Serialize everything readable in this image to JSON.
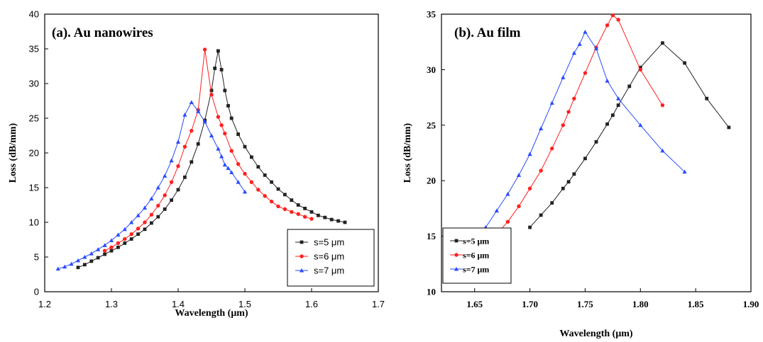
{
  "chart_data": [
    {
      "id": "a",
      "type": "line",
      "title": "(a). Au nanowires",
      "xlabel": "Wavelength (μm)",
      "ylabel": "Loss (dB/mm)",
      "xlim": [
        1.2,
        1.7
      ],
      "ylim": [
        0,
        40
      ],
      "xticks": [
        "1.2",
        "1.3",
        "1.4",
        "1.5",
        "1.6",
        "1.7"
      ],
      "yticks": [
        "0",
        "5",
        "10",
        "15",
        "20",
        "25",
        "30",
        "35",
        "40"
      ],
      "legend_position": "bottom-right",
      "series": [
        {
          "name": "s=5 μm",
          "color": "#222222",
          "marker": "square",
          "x": [
            1.25,
            1.26,
            1.27,
            1.28,
            1.29,
            1.3,
            1.31,
            1.32,
            1.33,
            1.34,
            1.35,
            1.36,
            1.37,
            1.38,
            1.39,
            1.4,
            1.41,
            1.42,
            1.43,
            1.44,
            1.45,
            1.455,
            1.46,
            1.465,
            1.47,
            1.475,
            1.48,
            1.49,
            1.5,
            1.51,
            1.52,
            1.53,
            1.54,
            1.55,
            1.56,
            1.57,
            1.58,
            1.59,
            1.6,
            1.61,
            1.62,
            1.63,
            1.64,
            1.65
          ],
          "y": [
            3.5,
            3.9,
            4.4,
            4.9,
            5.4,
            5.9,
            6.4,
            7.0,
            7.6,
            8.3,
            9.0,
            9.9,
            10.8,
            11.9,
            13.2,
            14.7,
            16.5,
            18.7,
            21.3,
            24.7,
            29.0,
            32.2,
            34.7,
            32.0,
            29.0,
            26.8,
            25.0,
            22.7,
            20.9,
            19.4,
            18.0,
            16.8,
            15.8,
            14.8,
            14.0,
            13.2,
            12.5,
            12.0,
            11.5,
            11.0,
            10.7,
            10.4,
            10.2,
            10.0
          ]
        },
        {
          "name": "s=6 μm",
          "color": "#ff2020",
          "marker": "circle",
          "x": [
            1.29,
            1.3,
            1.31,
            1.32,
            1.33,
            1.34,
            1.35,
            1.36,
            1.37,
            1.38,
            1.39,
            1.4,
            1.41,
            1.42,
            1.43,
            1.44,
            1.45,
            1.46,
            1.465,
            1.47,
            1.48,
            1.49,
            1.5,
            1.51,
            1.52,
            1.53,
            1.54,
            1.55,
            1.56,
            1.57,
            1.58,
            1.59,
            1.6
          ],
          "y": [
            5.9,
            6.4,
            7.0,
            7.6,
            8.3,
            9.1,
            10.0,
            11.1,
            12.4,
            13.9,
            15.8,
            18.1,
            20.9,
            23.2,
            26.2,
            34.9,
            28.4,
            25.2,
            24.0,
            22.8,
            20.3,
            18.4,
            17.0,
            15.8,
            14.7,
            13.8,
            13.0,
            12.3,
            11.9,
            11.5,
            11.2,
            10.8,
            10.5
          ]
        },
        {
          "name": "s=7 μm",
          "color": "#2a4bff",
          "marker": "triangle",
          "x": [
            1.22,
            1.23,
            1.24,
            1.25,
            1.26,
            1.27,
            1.28,
            1.29,
            1.3,
            1.31,
            1.32,
            1.33,
            1.34,
            1.35,
            1.36,
            1.37,
            1.38,
            1.39,
            1.4,
            1.41,
            1.42,
            1.43,
            1.44,
            1.45,
            1.46,
            1.465,
            1.47,
            1.475,
            1.48,
            1.49,
            1.5
          ],
          "y": [
            3.3,
            3.6,
            4.0,
            4.5,
            5.0,
            5.5,
            6.1,
            6.7,
            7.4,
            8.2,
            9.0,
            10.0,
            11.0,
            12.1,
            13.4,
            15.0,
            16.7,
            18.9,
            21.6,
            25.5,
            27.3,
            26.0,
            24.5,
            22.5,
            20.6,
            19.5,
            18.3,
            17.8,
            17.2,
            15.8,
            14.4
          ]
        }
      ]
    },
    {
      "id": "b",
      "type": "line",
      "title": "(b).  Au film",
      "xlabel": "Wavelength (μm)",
      "ylabel": "Loss (dB/mm)",
      "xlim": [
        1.62,
        1.9
      ],
      "ylim": [
        10,
        35
      ],
      "xticks": [
        "1.65",
        "1.70",
        "1.75",
        "1.80",
        "1.85",
        "1.90"
      ],
      "yticks": [
        "10",
        "15",
        "20",
        "25",
        "30",
        "35"
      ],
      "legend_position": "bottom-left",
      "series": [
        {
          "name": "s=5 μm",
          "color": "#222222",
          "marker": "square",
          "x": [
            1.7,
            1.71,
            1.72,
            1.73,
            1.735,
            1.74,
            1.75,
            1.76,
            1.77,
            1.775,
            1.78,
            1.79,
            1.8,
            1.82,
            1.84,
            1.86,
            1.88
          ],
          "y": [
            15.8,
            16.9,
            18.0,
            19.3,
            19.9,
            20.6,
            22.0,
            23.5,
            25.1,
            25.9,
            26.8,
            28.5,
            30.2,
            32.4,
            30.6,
            27.4,
            24.8
          ]
        },
        {
          "name": "s=6 μm",
          "color": "#ff2020",
          "marker": "circle",
          "x": [
            1.67,
            1.68,
            1.69,
            1.7,
            1.71,
            1.72,
            1.73,
            1.735,
            1.74,
            1.75,
            1.76,
            1.77,
            1.775,
            1.78,
            1.8,
            1.82
          ],
          "y": [
            15.2,
            16.3,
            17.7,
            19.3,
            20.9,
            22.9,
            25.0,
            26.2,
            27.4,
            29.7,
            32.0,
            34.0,
            34.9,
            34.5,
            30.0,
            26.8
          ]
        },
        {
          "name": "s=7 μm",
          "color": "#2a4bff",
          "marker": "triangle",
          "x": [
            1.66,
            1.67,
            1.68,
            1.69,
            1.7,
            1.71,
            1.72,
            1.73,
            1.74,
            1.745,
            1.75,
            1.76,
            1.77,
            1.78,
            1.8,
            1.82,
            1.84
          ],
          "y": [
            15.8,
            17.3,
            18.8,
            20.5,
            22.4,
            24.7,
            27.0,
            29.3,
            31.5,
            32.3,
            33.4,
            31.9,
            29.0,
            27.4,
            25.0,
            22.7,
            20.8
          ]
        }
      ]
    }
  ]
}
